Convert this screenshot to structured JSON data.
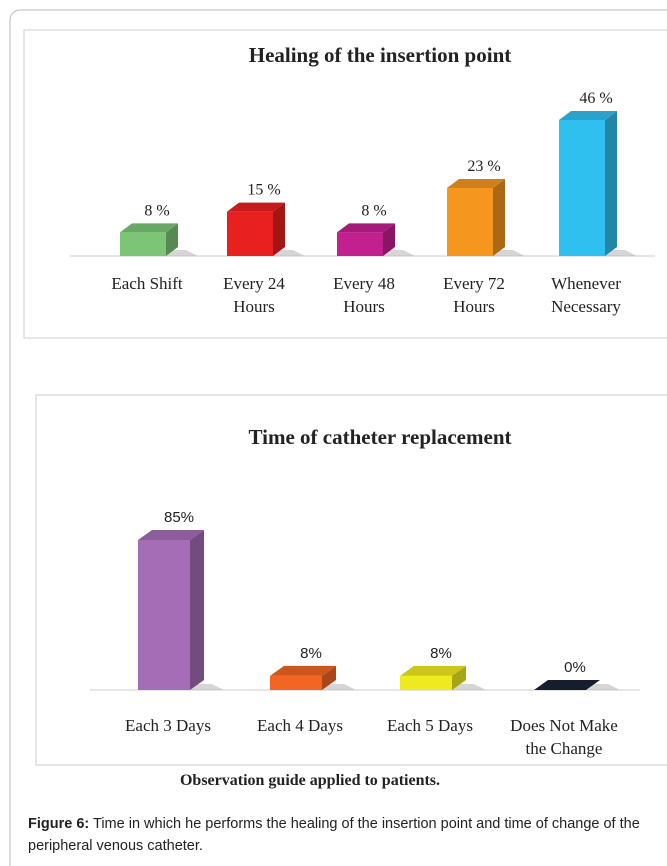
{
  "chart_data": [
    {
      "type": "bar",
      "title": "Healing of the insertion point",
      "categories": [
        "Each Shift",
        "Every 24 Hours",
        "Every 48 Hours",
        "Every 72 Hours",
        "Whenever Necessary"
      ],
      "values": [
        8,
        15,
        8,
        23,
        46
      ],
      "value_labels": [
        "8 %",
        "15 %",
        "8 %",
        "23 %",
        "46 %"
      ],
      "colors": [
        "#7cc576",
        "#e82020",
        "#c21f8f",
        "#f5961e",
        "#30c0ef"
      ]
    },
    {
      "type": "bar",
      "title": "Time of catheter replacement",
      "categories": [
        "Each 3 Days",
        "Each 4 Days",
        "Each 5 Days",
        "Does Not Make the Change"
      ],
      "values": [
        85,
        8,
        8,
        0
      ],
      "value_labels": [
        "85%",
        "8%",
        "8%",
        "0%"
      ],
      "colors": [
        "#a56db5",
        "#f26522",
        "#eeea1f",
        "#1a2336"
      ]
    }
  ],
  "note": "Observation guide applied to patients.",
  "caption": {
    "label": "Figure 6:",
    "text": "Time in which he performs the healing of the insertion point and time of change of the peripheral venous catheter."
  }
}
